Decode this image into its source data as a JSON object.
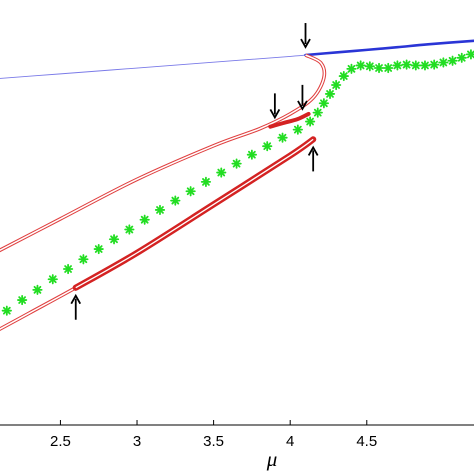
{
  "chart_data": {
    "type": "line",
    "title": "",
    "xlabel": "μ",
    "ylabel": "",
    "xlim": [
      2.05,
      5.2
    ],
    "ylim": [
      0.0,
      1.0
    ],
    "x_ticks": [
      2.5,
      3,
      3.5,
      4,
      4.5
    ],
    "x_tick_labels": [
      "2.5",
      "3",
      "3.5",
      "4",
      "4.5"
    ],
    "grid": false,
    "legend": "none",
    "colors": {
      "stable_branch": "#2a35d6",
      "unstable_branch": "#7a7ae8",
      "periodic_unstable": "#e04040",
      "periodic_stable": "#d42222",
      "numerical_points": "#22dd22",
      "arrows": "#000000"
    },
    "series": [
      {
        "style": "thin-blue",
        "x": [
          2.05,
          2.5,
          3.0,
          3.5,
          4.0,
          4.1
        ],
        "y": [
          0.814,
          0.8262,
          0.8399,
          0.8536,
          0.8673,
          0.8705
        ]
      },
      {
        "style": "thick-blue",
        "x": [
          4.1,
          4.3,
          4.5,
          4.7,
          4.9,
          5.2
        ],
        "y": [
          0.8705,
          0.8767,
          0.8826,
          0.8889,
          0.8957,
          0.9041
        ]
      },
      {
        "style": "red-thin-double",
        "x": [
          2.05,
          2.5,
          3.0,
          3.5,
          3.8,
          4.0,
          4.15,
          4.22,
          4.2,
          4.1
        ],
        "y": [
          0.401,
          0.485,
          0.578,
          0.657,
          0.697,
          0.732,
          0.77,
          0.817,
          0.852,
          0.8705
        ]
      },
      {
        "style": "red-thin-double",
        "x": [
          2.05,
          2.3,
          2.6,
          3.0,
          3.5,
          4.0,
          4.15
        ],
        "y": [
          0.215,
          0.264,
          0.323,
          0.405,
          0.519,
          0.634,
          0.672
        ]
      },
      {
        "style": "red-thick-double",
        "x": [
          2.6,
          3.0,
          3.5,
          4.0,
          4.15
        ],
        "y": [
          0.323,
          0.405,
          0.519,
          0.634,
          0.672
        ]
      },
      {
        "style": "red-thick",
        "x": [
          3.87,
          3.95,
          4.05,
          4.12
        ],
        "y": [
          0.702,
          0.71,
          0.72,
          0.732
        ]
      },
      {
        "style": "green-stars",
        "x": [
          2.05,
          2.15,
          2.25,
          2.35,
          2.45,
          2.55,
          2.65,
          2.75,
          2.85,
          2.95,
          3.05,
          3.15,
          3.25,
          3.35,
          3.45,
          3.55,
          3.65,
          3.75,
          3.85,
          3.95,
          4.05,
          4.13,
          4.18,
          4.22,
          4.26,
          4.3,
          4.35,
          4.4,
          4.46,
          4.52,
          4.58,
          4.64,
          4.7,
          4.76,
          4.82,
          4.88,
          4.94,
          5.0,
          5.06,
          5.12,
          5.18
        ],
        "y": [
          0.244,
          0.269,
          0.294,
          0.318,
          0.343,
          0.367,
          0.39,
          0.414,
          0.437,
          0.46,
          0.483,
          0.506,
          0.528,
          0.55,
          0.572,
          0.594,
          0.615,
          0.636,
          0.656,
          0.676,
          0.695,
          0.714,
          0.735,
          0.757,
          0.779,
          0.8,
          0.821,
          0.838,
          0.846,
          0.844,
          0.84,
          0.84,
          0.846,
          0.848,
          0.846,
          0.846,
          0.848,
          0.853,
          0.857,
          0.864,
          0.872
        ]
      }
    ],
    "annotations": [
      {
        "type": "arrow-down",
        "x": 4.1,
        "y": 0.8705
      },
      {
        "type": "arrow-down",
        "x": 3.9,
        "y": 0.705
      },
      {
        "type": "arrow-down",
        "x": 4.08,
        "y": 0.725
      },
      {
        "type": "arrow-up",
        "x": 4.15,
        "y": 0.672
      },
      {
        "type": "arrow-up",
        "x": 2.6,
        "y": 0.323
      }
    ]
  }
}
